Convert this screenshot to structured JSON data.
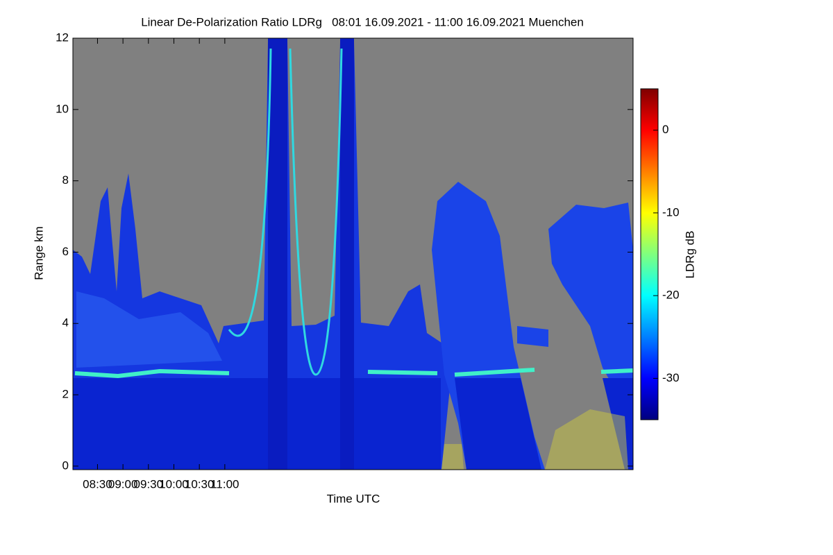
{
  "chart_data": {
    "type": "heatmap",
    "title": "Linear De-Polarization Ratio LDRg   08:01 16.09.2021 - 11:00 16.09.2021 Muenchen",
    "x_label": "Time UTC",
    "y_label": "Range km",
    "xlim": [
      481,
      1141
    ],
    "xticks": [
      {
        "value": 510,
        "label": "08:30"
      },
      {
        "value": 540,
        "label": "09:00"
      },
      {
        "value": 570,
        "label": "09:30"
      },
      {
        "value": 600,
        "label": "10:00"
      },
      {
        "value": 630,
        "label": "10:30"
      },
      {
        "value": 660,
        "label": "11:00"
      }
    ],
    "ylim": [
      -0.1,
      12
    ],
    "yticks": [
      0,
      2,
      4,
      6,
      8,
      10,
      12
    ],
    "colorbar_label": "LDRg dB",
    "clim": [
      -35,
      5
    ],
    "cticks": [
      -30,
      -20,
      -10,
      0
    ],
    "colormap": [
      "#00007f",
      "#0000ff",
      "#007fff",
      "#00ffff",
      "#7fff7f",
      "#ffff00",
      "#ff7f00",
      "#ff0000",
      "#7f0000"
    ]
  }
}
